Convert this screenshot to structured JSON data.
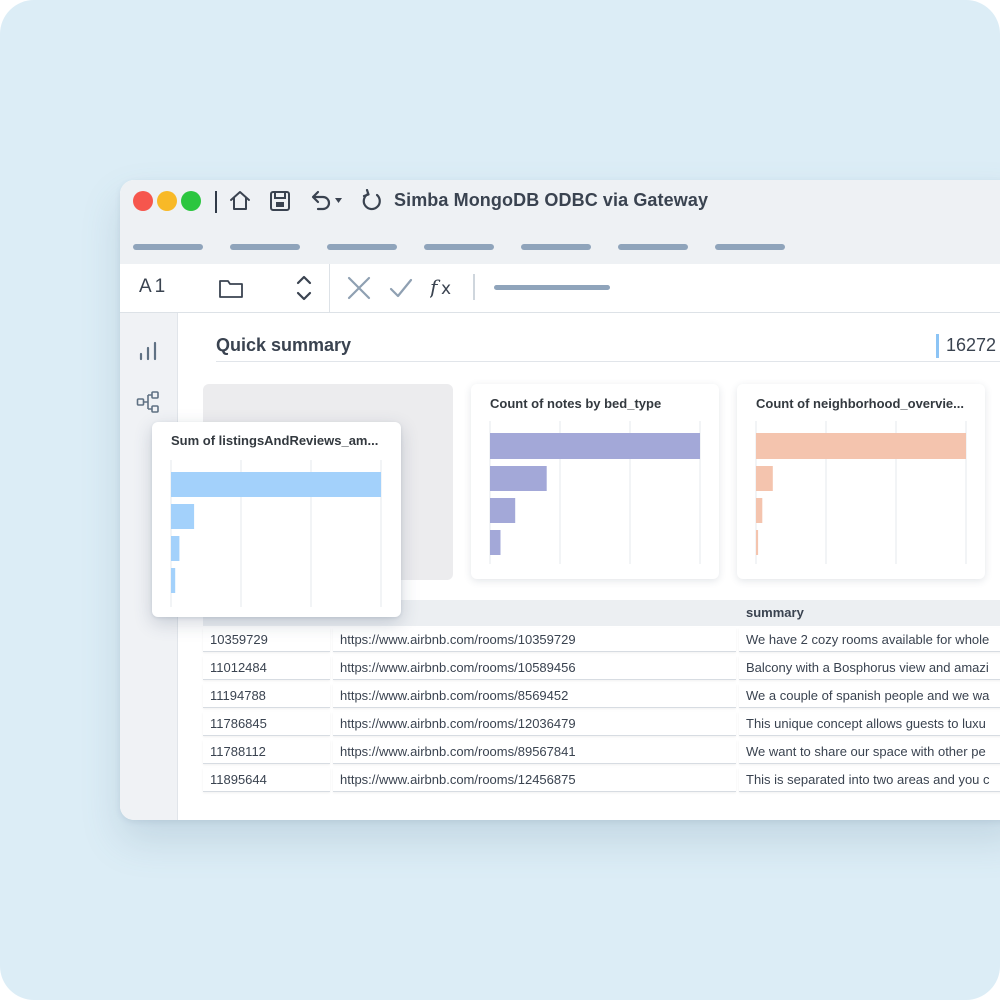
{
  "window": {
    "title": "Simba MongoDB ODBC via Gateway",
    "traffic_lights": [
      "#f6564d",
      "#f8b927",
      "#2bc63f"
    ],
    "toolbar_icons": [
      "home-icon",
      "save-icon",
      "undo-icon",
      "refresh-icon"
    ]
  },
  "formula_bar": {
    "cell_ref": "A1",
    "icons": [
      "folder-icon",
      "stepper-icon",
      "cancel-icon",
      "confirm-icon",
      "function-icon"
    ]
  },
  "sidebar": {
    "icons": [
      "bar-chart-icon",
      "hierarchy-icon"
    ]
  },
  "summary": {
    "title": "Quick summary",
    "value": "16272"
  },
  "chart_data": [
    {
      "type": "bar",
      "orientation": "horizontal",
      "title": "Sum of listingsAndReviews_am...",
      "values": [
        100,
        11,
        4,
        2
      ],
      "color": "#a3d1fb"
    },
    {
      "type": "bar",
      "orientation": "horizontal",
      "title": "Count of notes by bed_type",
      "values": [
        100,
        27,
        12,
        5
      ],
      "color": "#a3a8d8"
    },
    {
      "type": "bar",
      "orientation": "horizontal",
      "title": "Count of neighborhood_overvie...",
      "values": [
        100,
        8,
        3,
        1
      ],
      "color": "#f4c4ae"
    }
  ],
  "table": {
    "columns": [
      "",
      "",
      "summary"
    ],
    "rows": [
      [
        "10359729",
        "https://www.airbnb.com/rooms/10359729",
        "We have 2 cozy rooms available for whole"
      ],
      [
        "11012484",
        "https://www.airbnb.com/rooms/10589456",
        "Balcony with a Bosphorus view and amazi"
      ],
      [
        "11194788",
        "https://www.airbnb.com/rooms/8569452",
        "We a couple of spanish people and we wa"
      ],
      [
        "11786845",
        "https://www.airbnb.com/rooms/12036479",
        "This unique concept allows guests to luxu"
      ],
      [
        "11788112",
        "https://www.airbnb.com/rooms/89567841",
        "We want to share our space with other pe"
      ],
      [
        "11895644",
        "https://www.airbnb.com/rooms/12456875",
        "This is separated into two areas and you c"
      ]
    ]
  }
}
